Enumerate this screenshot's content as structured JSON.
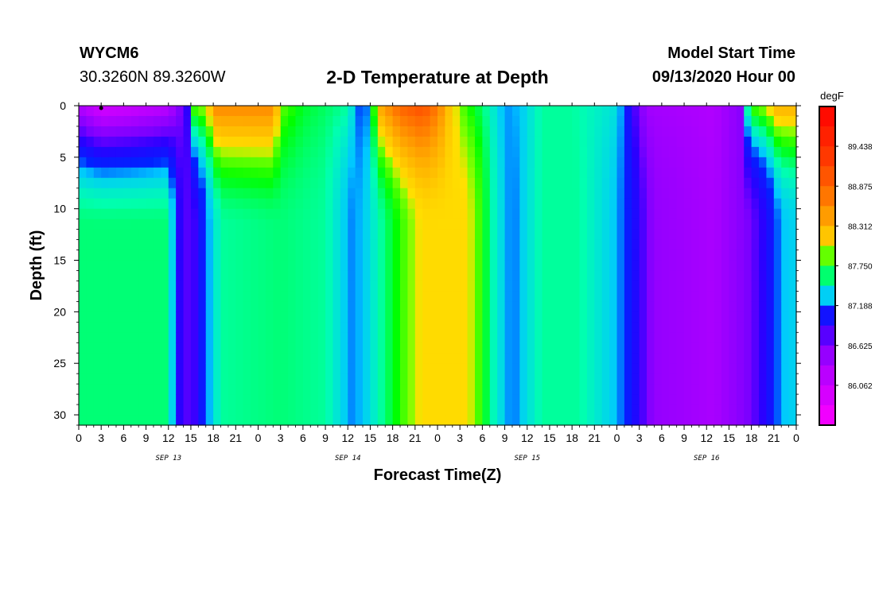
{
  "header": {
    "station": "WYCM6",
    "coords": "30.3260N 89.3260W",
    "title": "2-D Temperature at Depth",
    "model_start_label": "Model Start Time",
    "model_start_value": "09/13/2020 Hour 00"
  },
  "chart_data": {
    "type": "heatmap",
    "title": "2-D Temperature at Depth",
    "xlabel": "Forecast Time(Z)",
    "ylabel": "Depth (ft)",
    "units": "degF",
    "x_hours_range": [
      0,
      96
    ],
    "y_range": [
      0,
      31
    ],
    "y_inverted": true,
    "y_ticks": [
      0,
      5,
      10,
      15,
      20,
      25,
      30
    ],
    "x_tick_labels": [
      "0",
      "3",
      "6",
      "9",
      "12",
      "15",
      "18",
      "21",
      "0",
      "3",
      "6",
      "9",
      "12",
      "15",
      "18",
      "21",
      "0",
      "3",
      "6",
      "9",
      "12",
      "15",
      "18",
      "21",
      "0",
      "3",
      "6",
      "9",
      "12",
      "15",
      "18",
      "21",
      "0"
    ],
    "day_labels": [
      "SEP 13",
      "SEP 14",
      "SEP 15",
      "SEP 16"
    ],
    "colorbar": {
      "min": 85.5,
      "max": 90.0,
      "labels": [
        "89.438",
        "88.875",
        "88.312",
        "87.750",
        "87.188",
        "86.625",
        "86.062"
      ]
    },
    "surface_series_degF": [
      {
        "hour": 0,
        "value": 86.3
      },
      {
        "hour": 3,
        "value": 85.9
      },
      {
        "hour": 7,
        "value": 86.0
      },
      {
        "hour": 12,
        "value": 86.2
      },
      {
        "hour": 14.5,
        "value": 86.9
      },
      {
        "hour": 15.5,
        "value": 87.9
      },
      {
        "hour": 17,
        "value": 88.0
      },
      {
        "hour": 18.5,
        "value": 88.6
      },
      {
        "hour": 26,
        "value": 88.6
      },
      {
        "hour": 27,
        "value": 87.9
      },
      {
        "hour": 30,
        "value": 87.7
      },
      {
        "hour": 36,
        "value": 87.55
      },
      {
        "hour": 37,
        "value": 87.3
      },
      {
        "hour": 38,
        "value": 87.1
      },
      {
        "hour": 39,
        "value": 87.35
      },
      {
        "hour": 40,
        "value": 88.3
      },
      {
        "hour": 43,
        "value": 88.9
      },
      {
        "hour": 46,
        "value": 89.1
      },
      {
        "hour": 48,
        "value": 88.7
      },
      {
        "hour": 49.5,
        "value": 88.2
      },
      {
        "hour": 51,
        "value": 87.9
      },
      {
        "hour": 55,
        "value": 87.5
      },
      {
        "hour": 57,
        "value": 87.25
      },
      {
        "hour": 59,
        "value": 87.3
      },
      {
        "hour": 62,
        "value": 87.55
      },
      {
        "hour": 66,
        "value": 87.55
      },
      {
        "hour": 72,
        "value": 87.4
      },
      {
        "hour": 74,
        "value": 86.9
      },
      {
        "hour": 76,
        "value": 86.4
      },
      {
        "hour": 85,
        "value": 86.3
      },
      {
        "hour": 89,
        "value": 86.6
      },
      {
        "hour": 89.5,
        "value": 87.6
      },
      {
        "hour": 90.5,
        "value": 87.9
      },
      {
        "hour": 92,
        "value": 88.0
      },
      {
        "hour": 93.5,
        "value": 88.3
      },
      {
        "hour": 96,
        "value": 88.3
      }
    ],
    "bottom_series_degF": [
      {
        "hour": 0,
        "value": 87.6
      },
      {
        "hour": 12,
        "value": 87.6
      },
      {
        "hour": 13.2,
        "value": 87.0
      },
      {
        "hour": 14,
        "value": 86.75
      },
      {
        "hour": 15.5,
        "value": 86.85
      },
      {
        "hour": 17,
        "value": 87.2
      },
      {
        "hour": 19,
        "value": 87.55
      },
      {
        "hour": 27,
        "value": 87.6
      },
      {
        "hour": 33,
        "value": 87.55
      },
      {
        "hour": 36.5,
        "value": 87.25
      },
      {
        "hour": 38,
        "value": 87.3
      },
      {
        "hour": 41,
        "value": 87.6
      },
      {
        "hour": 44,
        "value": 87.9
      },
      {
        "hour": 46,
        "value": 88.05
      },
      {
        "hour": 52,
        "value": 88.05
      },
      {
        "hour": 53.5,
        "value": 87.85
      },
      {
        "hour": 55.5,
        "value": 87.5
      },
      {
        "hour": 58,
        "value": 87.2
      },
      {
        "hour": 59.5,
        "value": 87.35
      },
      {
        "hour": 62,
        "value": 87.55
      },
      {
        "hour": 67,
        "value": 87.55
      },
      {
        "hour": 72,
        "value": 87.3
      },
      {
        "hour": 75,
        "value": 86.9
      },
      {
        "hour": 77,
        "value": 86.5
      },
      {
        "hour": 85,
        "value": 86.35
      },
      {
        "hour": 89,
        "value": 86.6
      },
      {
        "hour": 92,
        "value": 86.95
      },
      {
        "hour": 94,
        "value": 87.3
      },
      {
        "hour": 96,
        "value": 87.35
      }
    ],
    "colors": {
      "stops": [
        "#ff00ff",
        "#b000ff",
        "#7a00ff",
        "#2a00ff",
        "#0022ff",
        "#00c8ff",
        "#00ffb0",
        "#00ff00",
        "#80ff00",
        "#ffe000",
        "#ffc000",
        "#ff8000",
        "#ff4000",
        "#ff0000"
      ],
      "stop_positions": [
        0.0,
        0.18,
        0.26,
        0.31,
        0.37,
        0.4,
        0.45,
        0.5,
        0.54,
        0.56,
        0.6,
        0.7,
        0.82,
        1.0
      ]
    }
  }
}
